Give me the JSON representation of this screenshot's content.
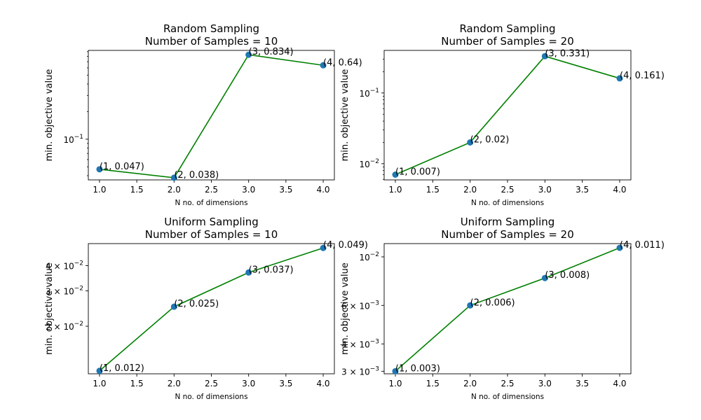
{
  "chart_data": [
    {
      "type": "line",
      "title_line1": "Random Sampling",
      "title_line2": "Number of Samples = 10",
      "xlabel": "N no. of dimensions",
      "ylabel": "min. objective value",
      "yscale": "log",
      "xlim": [
        0.85,
        4.15
      ],
      "ylim": [
        0.036,
        0.93
      ],
      "x": [
        1,
        2,
        3,
        4
      ],
      "values": [
        0.047,
        0.038,
        0.834,
        0.64
      ],
      "x_ticks": [
        1.0,
        1.5,
        2.0,
        2.5,
        3.0,
        3.5,
        4.0
      ],
      "x_tick_labels": [
        "1.0",
        "1.5",
        "2.0",
        "2.5",
        "3.0",
        "3.5",
        "4.0"
      ],
      "y_major_ticks": [
        {
          "value": 0.1,
          "base": "10",
          "exp": "−1"
        }
      ],
      "y_minor_ticks": [
        0.04,
        0.05,
        0.06,
        0.07,
        0.08,
        0.09,
        0.2,
        0.3,
        0.4,
        0.5,
        0.6,
        0.7,
        0.8,
        0.9
      ],
      "annotations": [
        "(1, 0.047)",
        "(2, 0.038)",
        "(3, 0.834)",
        "(4, 0.64)"
      ],
      "line_color": "#008000",
      "marker_color": "#1f77b4",
      "grid": false
    },
    {
      "type": "line",
      "title_line1": "Random Sampling",
      "title_line2": "Number of Samples = 20",
      "xlabel": "N no. of dimensions",
      "ylabel": "min. objective value",
      "yscale": "log",
      "xlim": [
        0.85,
        4.15
      ],
      "ylim": [
        0.0059,
        0.4
      ],
      "x": [
        1,
        2,
        3,
        4
      ],
      "values": [
        0.007,
        0.02,
        0.331,
        0.161
      ],
      "x_ticks": [
        1.0,
        1.5,
        2.0,
        2.5,
        3.0,
        3.5,
        4.0
      ],
      "x_tick_labels": [
        "1.0",
        "1.5",
        "2.0",
        "2.5",
        "3.0",
        "3.5",
        "4.0"
      ],
      "y_major_ticks": [
        {
          "value": 0.01,
          "base": "10",
          "exp": "−2"
        },
        {
          "value": 0.1,
          "base": "10",
          "exp": "−1"
        }
      ],
      "y_minor_ticks": [
        0.006,
        0.007,
        0.008,
        0.009,
        0.02,
        0.03,
        0.04,
        0.05,
        0.06,
        0.07,
        0.08,
        0.09,
        0.2,
        0.3
      ],
      "annotations": [
        "(1, 0.007)",
        "(2, 0.02)",
        "(3, 0.331)",
        "(4, 0.161)"
      ],
      "line_color": "#008000",
      "marker_color": "#1f77b4",
      "grid": false
    },
    {
      "type": "line",
      "title_line1": "Uniform Sampling",
      "title_line2": "Number of Samples = 10",
      "xlabel": "N no. of dimensions",
      "ylabel": "min. objective value",
      "yscale": "log",
      "xlim": [
        0.85,
        4.15
      ],
      "ylim": [
        0.0116,
        0.0515
      ],
      "x": [
        1,
        2,
        3,
        4
      ],
      "values": [
        0.012,
        0.025,
        0.037,
        0.049
      ],
      "x_ticks": [
        1.0,
        1.5,
        2.0,
        2.5,
        3.0,
        3.5,
        4.0
      ],
      "x_tick_labels": [
        "1.0",
        "1.5",
        "2.0",
        "2.5",
        "3.0",
        "3.5",
        "4.0"
      ],
      "y_major_ticks": [
        {
          "value": 0.02,
          "base": "2 × 10",
          "exp": "−2"
        },
        {
          "value": 0.03,
          "base": "3 × 10",
          "exp": "−2"
        },
        {
          "value": 0.04,
          "base": "4 × 10",
          "exp": "−2"
        }
      ],
      "y_minor_ticks": [],
      "annotations": [
        "(1, 0.012)",
        "(2, 0.025)",
        "(3, 0.037)",
        "(4, 0.049)"
      ],
      "line_color": "#008000",
      "marker_color": "#1f77b4",
      "grid": false
    },
    {
      "type": "line",
      "title_line1": "Uniform Sampling",
      "title_line2": "Number of Samples = 20",
      "xlabel": "N no. of dimensions",
      "ylabel": "min. objective value",
      "yscale": "log",
      "xlim": [
        0.85,
        4.15
      ],
      "ylim": [
        0.00292,
        0.0115
      ],
      "x": [
        1,
        2,
        3,
        4
      ],
      "values": [
        0.003,
        0.006,
        0.008,
        0.011
      ],
      "x_ticks": [
        1.0,
        1.5,
        2.0,
        2.5,
        3.0,
        3.5,
        4.0
      ],
      "x_tick_labels": [
        "1.0",
        "1.5",
        "2.0",
        "2.5",
        "3.0",
        "3.5",
        "4.0"
      ],
      "y_major_ticks": [
        {
          "value": 0.003,
          "base": "3 × 10",
          "exp": "−3"
        },
        {
          "value": 0.004,
          "base": "4 × 10",
          "exp": "−3"
        },
        {
          "value": 0.006,
          "base": "6 × 10",
          "exp": "−3"
        },
        {
          "value": 0.01,
          "base": "10",
          "exp": "−2"
        }
      ],
      "y_minor_ticks": [],
      "annotations": [
        "(1, 0.003)",
        "(2, 0.006)",
        "(3, 0.008)",
        "(4, 0.011)"
      ],
      "line_color": "#008000",
      "marker_color": "#1f77b4",
      "grid": false
    }
  ]
}
